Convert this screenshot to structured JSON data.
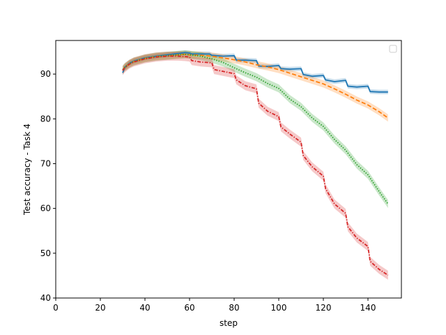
{
  "chart_data": {
    "type": "line",
    "title": "",
    "xlabel": "step",
    "ylabel": "Test accuracy - Task 4",
    "xlim": [
      0,
      155
    ],
    "ylim": [
      40,
      97.5
    ],
    "xticks": [
      0,
      20,
      40,
      60,
      80,
      100,
      120,
      140
    ],
    "yticks": [
      40,
      50,
      60,
      70,
      80,
      90
    ],
    "grid": false,
    "legend": {
      "placement": "top-right",
      "entries": []
    },
    "series": [
      {
        "color": "#1f77b4",
        "dash": "solid",
        "band": 0.5,
        "x": [
          30,
          31,
          33,
          35,
          40,
          45,
          50,
          55,
          58,
          60,
          61,
          65,
          69,
          70,
          75,
          80,
          81,
          85,
          90,
          91,
          95,
          100,
          101,
          105,
          110,
          111,
          115,
          120,
          121,
          125,
          130,
          131,
          135,
          140,
          141,
          145,
          149
        ],
        "y": [
          90.3,
          91.5,
          92.4,
          92.9,
          93.6,
          94.0,
          94.3,
          94.6,
          94.8,
          94.7,
          94.5,
          94.5,
          94.5,
          94.2,
          94.0,
          94.1,
          93.1,
          93.1,
          93.0,
          91.8,
          91.7,
          91.9,
          91.2,
          91.1,
          91.2,
          89.9,
          89.5,
          89.7,
          88.7,
          88.3,
          88.6,
          87.3,
          87.1,
          87.3,
          86.1,
          86.0,
          86.0
        ]
      },
      {
        "color": "#ff7f0e",
        "dash": "6,3",
        "band": 0.8,
        "x": [
          30,
          31,
          33,
          35,
          40,
          45,
          50,
          55,
          58,
          60,
          65,
          70,
          75,
          80,
          85,
          90,
          95,
          100,
          105,
          110,
          115,
          120,
          125,
          130,
          135,
          140,
          145,
          149
        ],
        "y": [
          90.8,
          91.5,
          92.3,
          92.8,
          93.5,
          93.9,
          94.1,
          94.3,
          94.4,
          94.3,
          94.2,
          94.0,
          93.6,
          93.2,
          92.7,
          92.1,
          91.6,
          91.0,
          90.2,
          89.4,
          88.6,
          87.8,
          86.7,
          85.5,
          84.2,
          83.1,
          81.6,
          80.2
        ]
      },
      {
        "color": "#2ca02c",
        "dash": "1.5,2",
        "band": 0.9,
        "x": [
          30,
          31,
          33,
          35,
          40,
          45,
          50,
          55,
          58,
          60,
          65,
          70,
          75,
          80,
          85,
          90,
          95,
          100,
          105,
          110,
          115,
          120,
          125,
          130,
          135,
          140,
          145,
          149
        ],
        "y": [
          91.0,
          91.6,
          92.3,
          92.8,
          93.5,
          93.9,
          94.1,
          94.3,
          94.4,
          94.3,
          94.0,
          93.4,
          92.6,
          91.4,
          90.3,
          89.3,
          87.9,
          86.8,
          84.4,
          82.7,
          80.2,
          78.3,
          75.4,
          73.0,
          69.8,
          67.5,
          63.8,
          61.0
        ]
      },
      {
        "color": "#d62728",
        "dash": "5,2,1.5,2",
        "band": 1.0,
        "x": [
          30,
          31,
          33,
          35,
          40,
          45,
          50,
          55,
          58,
          60,
          61,
          65,
          70,
          71,
          75,
          80,
          81,
          85,
          90,
          91,
          95,
          100,
          101,
          105,
          110,
          111,
          115,
          120,
          121,
          125,
          130,
          131,
          135,
          140,
          141,
          145,
          149
        ],
        "y": [
          90.8,
          91.4,
          92.2,
          92.7,
          93.4,
          93.8,
          94.0,
          94.0,
          93.9,
          93.8,
          93.0,
          92.7,
          92.5,
          91.0,
          90.6,
          90.1,
          88.7,
          87.4,
          86.7,
          83.5,
          81.7,
          80.5,
          78.2,
          76.6,
          74.8,
          71.8,
          69.3,
          67.2,
          64.4,
          61.0,
          58.9,
          55.9,
          53.4,
          51.5,
          48.2,
          46.4,
          45.1
        ]
      }
    ]
  }
}
